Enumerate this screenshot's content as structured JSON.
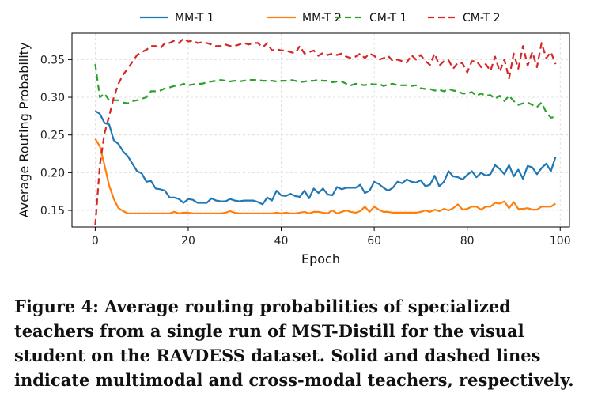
{
  "chart_data": {
    "type": "line",
    "title": "",
    "xlabel": "Epoch",
    "ylabel": "Average Routing Probability",
    "xlim": [
      -5,
      102
    ],
    "ylim": [
      0.128,
      0.385
    ],
    "xticks": [
      0,
      20,
      40,
      60,
      80,
      100
    ],
    "yticks": [
      0.15,
      0.2,
      0.25,
      0.3,
      0.35
    ],
    "grid": true,
    "legend_position": "top-center",
    "series": [
      {
        "name": "MM-T 1",
        "style": "solid",
        "color": "#1f77b4",
        "values": [
          0.282,
          0.278,
          0.266,
          0.264,
          0.243,
          0.238,
          0.228,
          0.222,
          0.212,
          0.202,
          0.199,
          0.188,
          0.189,
          0.179,
          0.178,
          0.176,
          0.167,
          0.167,
          0.165,
          0.16,
          0.165,
          0.164,
          0.16,
          0.16,
          0.16,
          0.166,
          0.163,
          0.162,
          0.162,
          0.165,
          0.163,
          0.162,
          0.163,
          0.163,
          0.163,
          0.161,
          0.158,
          0.167,
          0.163,
          0.176,
          0.17,
          0.169,
          0.172,
          0.169,
          0.168,
          0.176,
          0.166,
          0.179,
          0.173,
          0.179,
          0.171,
          0.17,
          0.181,
          0.178,
          0.18,
          0.18,
          0.18,
          0.184,
          0.173,
          0.176,
          0.188,
          0.185,
          0.18,
          0.176,
          0.18,
          0.188,
          0.186,
          0.191,
          0.188,
          0.187,
          0.19,
          0.182,
          0.184,
          0.196,
          0.182,
          0.188,
          0.202,
          0.195,
          0.194,
          0.191,
          0.197,
          0.202,
          0.194,
          0.2,
          0.196,
          0.198,
          0.21,
          0.205,
          0.198,
          0.21,
          0.195,
          0.204,
          0.192,
          0.209,
          0.207,
          0.198,
          0.206,
          0.212,
          0.202,
          0.221
        ]
      },
      {
        "name": "MM-T 2",
        "style": "solid",
        "color": "#ff7f0e",
        "values": [
          0.245,
          0.235,
          0.21,
          0.183,
          0.165,
          0.153,
          0.149,
          0.146,
          0.146,
          0.146,
          0.146,
          0.146,
          0.146,
          0.146,
          0.146,
          0.146,
          0.146,
          0.148,
          0.146,
          0.147,
          0.147,
          0.146,
          0.146,
          0.146,
          0.146,
          0.146,
          0.146,
          0.146,
          0.147,
          0.149,
          0.147,
          0.146,
          0.146,
          0.146,
          0.146,
          0.146,
          0.146,
          0.146,
          0.146,
          0.147,
          0.146,
          0.147,
          0.146,
          0.146,
          0.147,
          0.148,
          0.146,
          0.148,
          0.148,
          0.147,
          0.146,
          0.15,
          0.146,
          0.148,
          0.15,
          0.148,
          0.147,
          0.149,
          0.155,
          0.148,
          0.155,
          0.151,
          0.148,
          0.148,
          0.147,
          0.147,
          0.147,
          0.147,
          0.147,
          0.147,
          0.148,
          0.15,
          0.148,
          0.151,
          0.149,
          0.152,
          0.15,
          0.153,
          0.158,
          0.151,
          0.152,
          0.155,
          0.155,
          0.151,
          0.155,
          0.155,
          0.16,
          0.159,
          0.162,
          0.153,
          0.161,
          0.152,
          0.152,
          0.153,
          0.151,
          0.151,
          0.155,
          0.155,
          0.155,
          0.159
        ]
      },
      {
        "name": "CM-T 1",
        "style": "dashed",
        "color": "#2ca02c",
        "values": [
          0.344,
          0.3,
          0.305,
          0.296,
          0.296,
          0.296,
          0.293,
          0.292,
          0.295,
          0.296,
          0.298,
          0.3,
          0.308,
          0.308,
          0.309,
          0.312,
          0.313,
          0.315,
          0.315,
          0.318,
          0.316,
          0.317,
          0.318,
          0.318,
          0.32,
          0.321,
          0.322,
          0.323,
          0.322,
          0.321,
          0.322,
          0.321,
          0.322,
          0.323,
          0.323,
          0.323,
          0.322,
          0.322,
          0.322,
          0.321,
          0.322,
          0.322,
          0.323,
          0.322,
          0.32,
          0.321,
          0.322,
          0.322,
          0.323,
          0.322,
          0.322,
          0.32,
          0.321,
          0.321,
          0.318,
          0.316,
          0.318,
          0.317,
          0.316,
          0.318,
          0.317,
          0.318,
          0.315,
          0.317,
          0.318,
          0.316,
          0.316,
          0.316,
          0.315,
          0.316,
          0.312,
          0.311,
          0.311,
          0.309,
          0.31,
          0.308,
          0.311,
          0.309,
          0.308,
          0.305,
          0.305,
          0.307,
          0.302,
          0.305,
          0.302,
          0.303,
          0.298,
          0.302,
          0.295,
          0.302,
          0.295,
          0.29,
          0.292,
          0.293,
          0.29,
          0.287,
          0.293,
          0.28,
          0.273,
          0.274
        ]
      },
      {
        "name": "CM-T 2",
        "style": "dashed",
        "color": "#d62728",
        "values": [
          0.13,
          0.21,
          0.252,
          0.275,
          0.3,
          0.318,
          0.33,
          0.338,
          0.347,
          0.356,
          0.36,
          0.363,
          0.368,
          0.368,
          0.365,
          0.372,
          0.372,
          0.375,
          0.372,
          0.378,
          0.374,
          0.375,
          0.372,
          0.373,
          0.372,
          0.37,
          0.368,
          0.368,
          0.37,
          0.368,
          0.368,
          0.37,
          0.372,
          0.37,
          0.372,
          0.372,
          0.366,
          0.372,
          0.362,
          0.364,
          0.362,
          0.362,
          0.36,
          0.358,
          0.368,
          0.358,
          0.36,
          0.362,
          0.355,
          0.359,
          0.356,
          0.358,
          0.356,
          0.358,
          0.354,
          0.352,
          0.354,
          0.358,
          0.352,
          0.358,
          0.355,
          0.35,
          0.352,
          0.355,
          0.348,
          0.35,
          0.348,
          0.346,
          0.356,
          0.35,
          0.356,
          0.348,
          0.343,
          0.358,
          0.342,
          0.348,
          0.349,
          0.338,
          0.346,
          0.345,
          0.333,
          0.348,
          0.348,
          0.34,
          0.344,
          0.335,
          0.354,
          0.334,
          0.35,
          0.325,
          0.358,
          0.338,
          0.368,
          0.342,
          0.36,
          0.34,
          0.372,
          0.352,
          0.36,
          0.344
        ]
      }
    ]
  },
  "caption": "Figure 4: Average routing probabilities of specialized teachers from a single run of MST-Distill for the visual student on the RAVDESS dataset. Solid and dashed lines indicate multimodal and cross-modal teachers, respectively."
}
